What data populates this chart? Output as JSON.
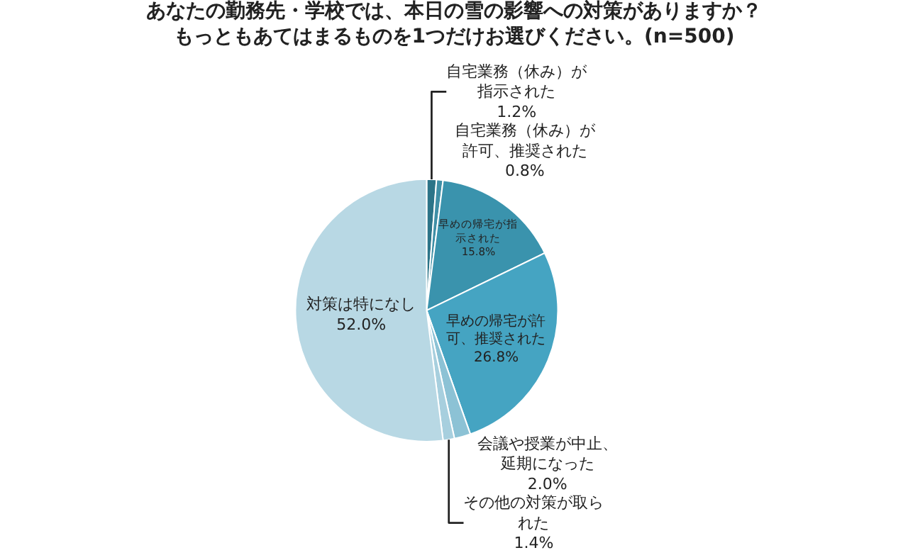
{
  "chart_data": {
    "type": "pie",
    "title": "あなたの勤務先・学校では、本日の雪の影響への対策がありますか？もっともあてはまるものを1つだけお選びください。(n=500)",
    "categories": [
      "自宅業務（休み）が指示された",
      "自宅業務（休み）が許可、推奨された",
      "早めの帰宅が指示された",
      "早めの帰宅が許可、推奨された",
      "会議や授業が中止、延期になった",
      "その他の対策が取られた",
      "対策は特になし"
    ],
    "values": [
      1.2,
      0.8,
      15.8,
      26.8,
      2.0,
      1.4,
      52.0
    ],
    "value_labels": [
      "1.2%",
      "0.8%",
      "15.8%",
      "26.8%",
      "2.0%",
      "1.4%",
      "52.0%"
    ],
    "colors": [
      "#2b7488",
      "#3f8fa6",
      "#3a93ad",
      "#45a4c2",
      "#8cc2d5",
      "#a7cfde",
      "#b8d8e4"
    ],
    "legend": false
  }
}
